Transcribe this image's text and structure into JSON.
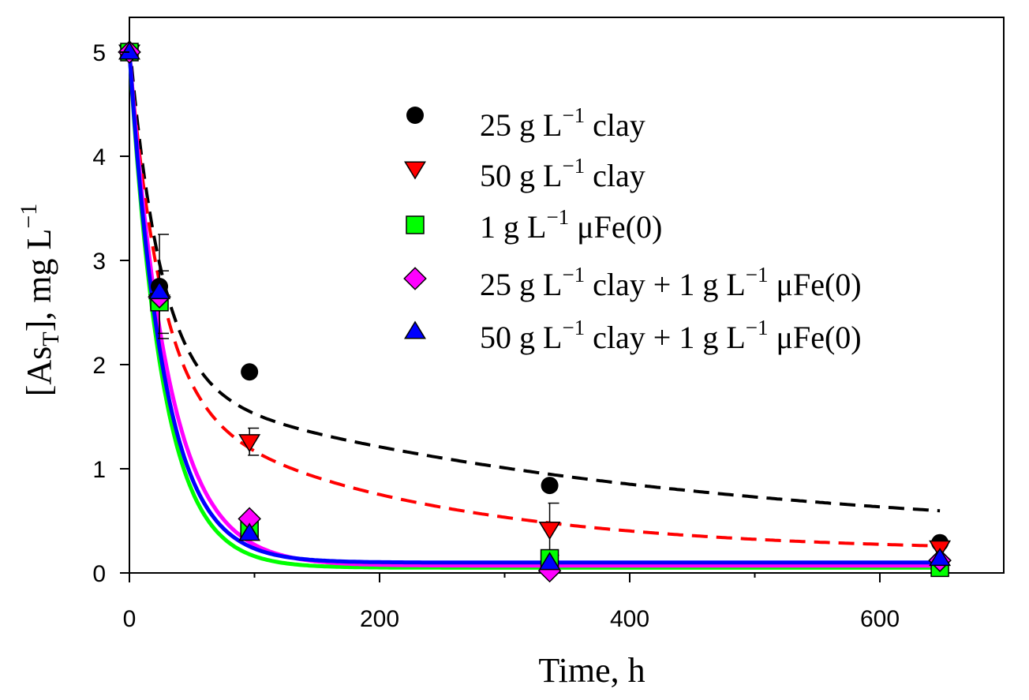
{
  "chart_data": {
    "type": "scatter",
    "title": "",
    "xlabel": "Time, h",
    "ylabel": "[As_T], mg L^-1",
    "ylabel_parts": {
      "open": "[As",
      "sub": "T",
      "close": "], mg L",
      "sup": "−1"
    },
    "xlim": [
      0,
      700
    ],
    "ylim": [
      0,
      5.2
    ],
    "x_ticks": [
      0,
      200,
      400,
      600
    ],
    "x_tick_labels": [
      "0",
      "200",
      "400",
      "600"
    ],
    "y_ticks": [
      0,
      1,
      2,
      3,
      4,
      5
    ],
    "y_tick_labels": [
      "0",
      "1",
      "2",
      "3",
      "4",
      "5"
    ],
    "grid": false,
    "legend_position": "top-right",
    "series": [
      {
        "name": "25 g L−1 clay",
        "legend": {
          "a": "25 g L",
          "sup": "−1",
          "b": " clay"
        },
        "marker": "circle",
        "color": "#000000",
        "x": [
          0,
          24,
          96,
          336,
          648
        ],
        "y": [
          5.0,
          2.75,
          1.93,
          0.84,
          0.29
        ],
        "err": [
          0,
          0.5,
          0,
          0,
          0
        ],
        "fit": {
          "style": "dashed",
          "color": "#000000",
          "model": "biexp",
          "a": 3.3,
          "k1": 0.04,
          "b": 1.5,
          "k2": 0.0025,
          "c": 0.3
        }
      },
      {
        "name": "50 g L−1 clay",
        "legend": {
          "a": "50 g L",
          "sup": "−1",
          "b": " clay"
        },
        "marker": "triangle-down",
        "color": "#ff0000",
        "x": [
          0,
          24,
          96,
          336,
          648
        ],
        "y": [
          5.0,
          2.6,
          1.26,
          0.42,
          0.24
        ],
        "err": [
          0,
          0.3,
          0.13,
          0.25,
          0
        ],
        "fit": {
          "style": "dashed",
          "color": "#ff0000",
          "model": "biexp",
          "a": 3.3,
          "k1": 0.04,
          "b": 1.5,
          "k2": 0.005,
          "c": 0.2
        }
      },
      {
        "name": "1 g L−1 μFe(0)",
        "legend": {
          "a": "1 g L",
          "sup": "−1",
          "b": " μFe(0)"
        },
        "marker": "square",
        "color": "#00ff00",
        "x": [
          0,
          24,
          96,
          336,
          648
        ],
        "y": [
          5.0,
          2.6,
          0.42,
          0.14,
          0.05
        ],
        "err": [
          0,
          0,
          0,
          0,
          0
        ],
        "fit": {
          "style": "solid",
          "color": "#00ff00",
          "model": "exp",
          "a": 4.95,
          "k": 0.038,
          "c": 0.05
        }
      },
      {
        "name": "25 g L−1 clay + 1 g L−1 μFe(0)",
        "legend": {
          "a": "25 g L",
          "sup": "−1",
          "b": " clay + 1 g L",
          "sup2": "−1",
          "c": " μFe(0)"
        },
        "marker": "diamond",
        "color": "#ff00ff",
        "x": [
          0,
          24,
          96,
          336,
          648
        ],
        "y": [
          5.0,
          2.65,
          0.52,
          0.02,
          0.12
        ],
        "err": [
          0,
          0,
          0,
          0,
          0
        ],
        "fit": {
          "style": "solid",
          "color": "#ff00ff",
          "model": "exp",
          "a": 4.93,
          "k": 0.032,
          "c": 0.07
        }
      },
      {
        "name": "50 g L−1 clay + 1 g L−1 μFe(0)",
        "legend": {
          "a": "50 g L",
          "sup": "−1",
          "b": " clay + 1 g L",
          "sup2": "−1",
          "c": " μFe(0)"
        },
        "marker": "triangle-up",
        "color": "#0000ff",
        "x": [
          0,
          24,
          96,
          336,
          648
        ],
        "y": [
          5.0,
          2.7,
          0.38,
          0.1,
          0.14
        ],
        "err": [
          0,
          0,
          0,
          0,
          0
        ],
        "fit": {
          "style": "solid",
          "color": "#0000ff",
          "model": "exp",
          "a": 4.9,
          "k": 0.036,
          "c": 0.1
        }
      }
    ]
  }
}
